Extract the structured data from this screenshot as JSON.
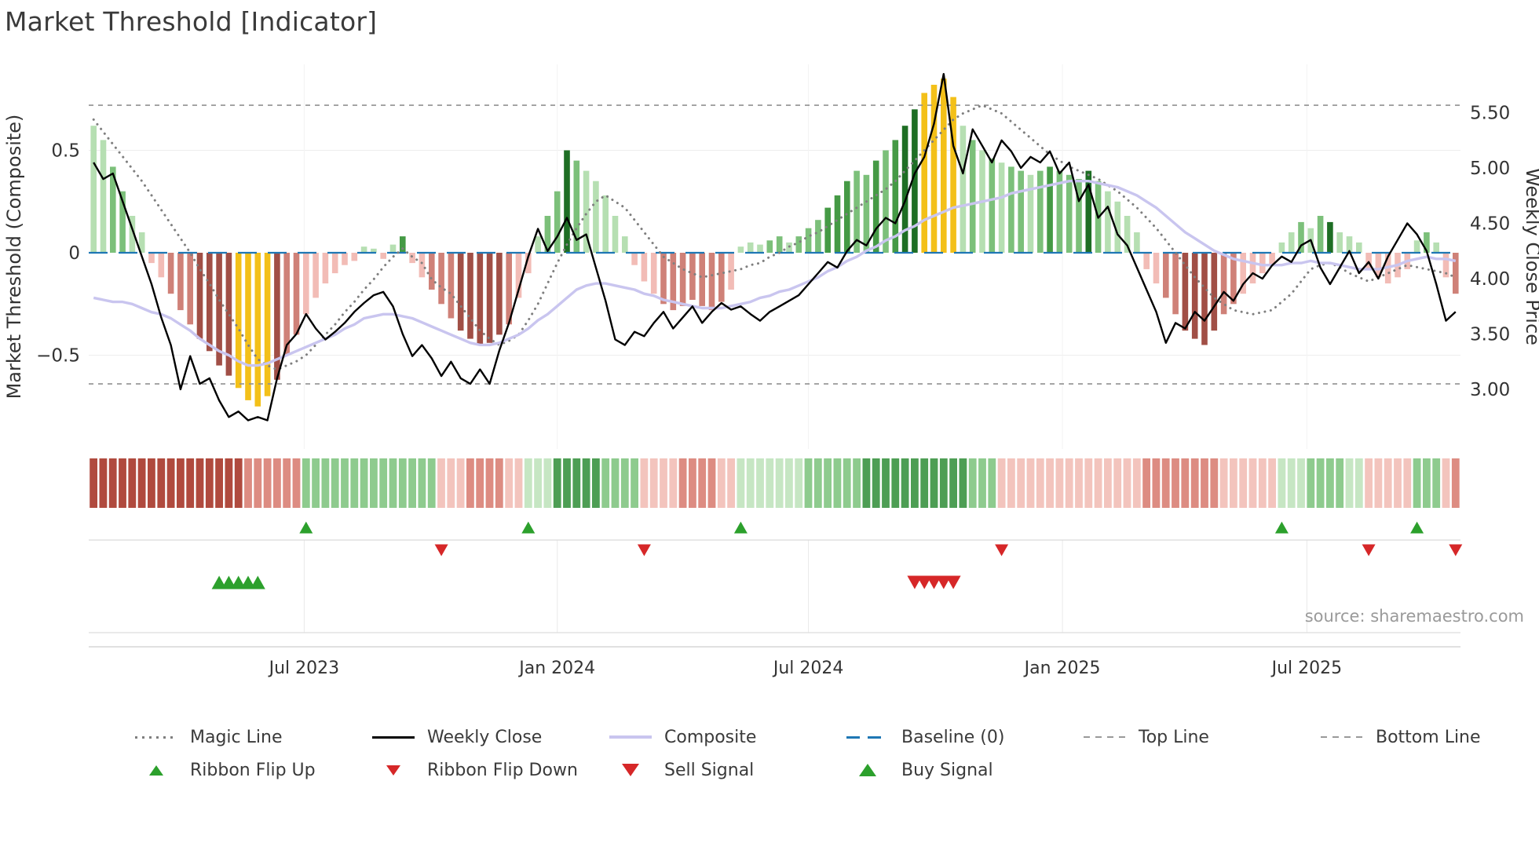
{
  "title": "Market Threshold [Indicator]",
  "source": "source: sharemaestro.com",
  "legend": {
    "row1": [
      {
        "label": "Magic Line",
        "type": "dotted-gray"
      },
      {
        "label": "Weekly Close",
        "type": "solid-black"
      },
      {
        "label": "Composite",
        "type": "solid-lavender"
      },
      {
        "label": "Baseline (0)",
        "type": "dash-blue"
      },
      {
        "label": "Top Line",
        "type": "dash-gray"
      },
      {
        "label": "Bottom Line",
        "type": "dash-gray"
      }
    ],
    "row2": [
      {
        "label": "Ribbon Flip Up",
        "type": "tri-up-green-small"
      },
      {
        "label": "Ribbon Flip Down",
        "type": "tri-down-red-small"
      },
      {
        "label": "Sell Signal",
        "type": "tri-down-red-large"
      },
      {
        "label": "Buy Signal",
        "type": "tri-up-green-large"
      }
    ]
  },
  "chart_data": {
    "type": "combo",
    "title": "Market Threshold [Indicator]",
    "frequency": "weekly",
    "x_ticks": [
      {
        "label": "Jul 2023",
        "week": 21.8
      },
      {
        "label": "Jan 2024",
        "week": 48.0
      },
      {
        "label": "Jul 2024",
        "week": 74.0
      },
      {
        "label": "Jan 2025",
        "week": 100.3
      },
      {
        "label": "Jul 2025",
        "week": 125.6
      }
    ],
    "y_left": {
      "title": "Market Threshold (Composite)",
      "ticks": [
        {
          "label": "0.5",
          "v": 0.5
        },
        {
          "label": "0",
          "v": 0.0
        },
        {
          "label": "−0.5",
          "v": -0.5
        }
      ],
      "range": [
        -0.95,
        0.92
      ]
    },
    "y_right": {
      "title": "Weekly Close Price",
      "ticks": [
        {
          "label": "5.50",
          "v": 5.5
        },
        {
          "label": "5.00",
          "v": 5.0
        },
        {
          "label": "4.50",
          "v": 4.5
        },
        {
          "label": "4.00",
          "v": 4.0
        },
        {
          "label": "3.50",
          "v": 3.5
        },
        {
          "label": "3.00",
          "v": 3.0
        }
      ],
      "range": [
        2.46,
        5.94
      ]
    },
    "baseline": 0,
    "top_line": 0.72,
    "bottom_line": -0.64,
    "colors": {
      "weekly_close": "#000000",
      "composite_line": "#c9c5ef",
      "magic_line": "#7f7f7f",
      "baseline": "#1f77b4",
      "top_bottom_line": "#909090",
      "buy_green": "#2ca02c",
      "sell_red": "#d62728"
    },
    "palette": {
      "g1": "#b6dfb2",
      "g2": "#7cc07a",
      "g3": "#459a45",
      "g4": "#1e6e24",
      "r1": "#f2bcb6",
      "r2": "#cf8178",
      "r3": "#a14f46",
      "y": "#f3c019"
    },
    "ribbon_palette": {
      "R3": "#b04a3e",
      "R2": "#dd8c82",
      "R1": "#f3c4bd",
      "G3": "#4d9e54",
      "G2": "#8ecb8e",
      "G1": "#c6e6c3"
    },
    "series": {
      "bar": [
        0.62,
        0.55,
        0.42,
        0.3,
        0.18,
        0.1,
        -0.05,
        -0.12,
        -0.2,
        -0.28,
        -0.35,
        -0.42,
        -0.48,
        -0.55,
        -0.6,
        -0.66,
        -0.72,
        -0.75,
        -0.7,
        -0.62,
        -0.5,
        -0.4,
        -0.3,
        -0.22,
        -0.15,
        -0.1,
        -0.06,
        -0.04,
        0.03,
        0.02,
        -0.03,
        0.04,
        0.08,
        -0.05,
        -0.12,
        -0.18,
        -0.25,
        -0.32,
        -0.38,
        -0.42,
        -0.45,
        -0.44,
        -0.4,
        -0.35,
        -0.22,
        -0.1,
        0.08,
        0.18,
        0.3,
        0.5,
        0.45,
        0.4,
        0.35,
        0.28,
        0.18,
        0.08,
        -0.06,
        -0.14,
        -0.2,
        -0.25,
        -0.28,
        -0.26,
        -0.23,
        -0.26,
        -0.28,
        -0.24,
        -0.18,
        0.03,
        0.05,
        0.04,
        0.06,
        0.08,
        0.05,
        0.08,
        0.12,
        0.16,
        0.22,
        0.28,
        0.35,
        0.4,
        0.38,
        0.45,
        0.5,
        0.55,
        0.62,
        0.7,
        0.78,
        0.82,
        0.85,
        0.76,
        0.62,
        0.55,
        0.5,
        0.46,
        0.44,
        0.42,
        0.4,
        0.38,
        0.4,
        0.42,
        0.4,
        0.38,
        0.36,
        0.4,
        0.35,
        0.3,
        0.25,
        0.18,
        0.1,
        -0.08,
        -0.15,
        -0.22,
        -0.3,
        -0.38,
        -0.42,
        -0.45,
        -0.38,
        -0.3,
        -0.25,
        -0.2,
        -0.15,
        -0.1,
        -0.06,
        0.05,
        0.1,
        0.15,
        0.12,
        0.18,
        0.15,
        0.1,
        0.08,
        0.05,
        -0.08,
        -0.12,
        -0.15,
        -0.12,
        -0.08,
        0.06,
        0.1,
        0.05,
        -0.12,
        -0.2
      ],
      "bar_color": [
        "g1",
        "g1",
        "g2",
        "g2",
        "g1",
        "g1",
        "r1",
        "r1",
        "r2",
        "r2",
        "r2",
        "r3",
        "r3",
        "r3",
        "r3",
        "y",
        "y",
        "y",
        "y",
        "r3",
        "r2",
        "r2",
        "r1",
        "r1",
        "r1",
        "r1",
        "r1",
        "r1",
        "g1",
        "g1",
        "r1",
        "g1",
        "g3",
        "r1",
        "r1",
        "r2",
        "r2",
        "r2",
        "r3",
        "r3",
        "r3",
        "r3",
        "r3",
        "r2",
        "r1",
        "r1",
        "g1",
        "g2",
        "g2",
        "g4",
        "g2",
        "g1",
        "g1",
        "g1",
        "g1",
        "g1",
        "r1",
        "r1",
        "r1",
        "r2",
        "r2",
        "r2",
        "r2",
        "r2",
        "r2",
        "r2",
        "r1",
        "g1",
        "g1",
        "g1",
        "g2",
        "g2",
        "g1",
        "g2",
        "g2",
        "g2",
        "g3",
        "g3",
        "g3",
        "g2",
        "g2",
        "g3",
        "g2",
        "g3",
        "g4",
        "g4",
        "y",
        "y",
        "y",
        "y",
        "g1",
        "g2",
        "g1",
        "g2",
        "g1",
        "g2",
        "g2",
        "g1",
        "g2",
        "g3",
        "g2",
        "g2",
        "g2",
        "g4",
        "g2",
        "g1",
        "g1",
        "g1",
        "g1",
        "r1",
        "r1",
        "r2",
        "r2",
        "r3",
        "r3",
        "r3",
        "r3",
        "r2",
        "r2",
        "r1",
        "r1",
        "r1",
        "r1",
        "g1",
        "g1",
        "g2",
        "g1",
        "g2",
        "g4",
        "g1",
        "g1",
        "g1",
        "r1",
        "r1",
        "r1",
        "r1",
        "r1",
        "g1",
        "g2",
        "g1",
        "r1",
        "r2"
      ],
      "weekly_close": [
        5.05,
        4.9,
        4.95,
        4.7,
        4.45,
        4.2,
        3.95,
        3.65,
        3.4,
        3.0,
        3.3,
        3.05,
        3.1,
        2.9,
        2.75,
        2.8,
        2.72,
        2.75,
        2.72,
        3.1,
        3.4,
        3.5,
        3.68,
        3.55,
        3.45,
        3.52,
        3.6,
        3.7,
        3.78,
        3.85,
        3.88,
        3.75,
        3.5,
        3.3,
        3.4,
        3.28,
        3.12,
        3.25,
        3.1,
        3.05,
        3.18,
        3.05,
        3.35,
        3.6,
        3.9,
        4.2,
        4.45,
        4.25,
        4.38,
        4.55,
        4.35,
        4.4,
        4.1,
        3.8,
        3.45,
        3.4,
        3.52,
        3.48,
        3.6,
        3.7,
        3.55,
        3.65,
        3.75,
        3.6,
        3.7,
        3.78,
        3.72,
        3.75,
        3.68,
        3.62,
        3.7,
        3.75,
        3.8,
        3.85,
        3.95,
        4.05,
        4.15,
        4.1,
        4.25,
        4.35,
        4.3,
        4.45,
        4.55,
        4.5,
        4.7,
        4.95,
        5.1,
        5.4,
        5.85,
        5.2,
        4.95,
        5.35,
        5.2,
        5.05,
        5.25,
        5.15,
        5.0,
        5.1,
        5.05,
        5.15,
        4.95,
        5.05,
        4.7,
        4.85,
        4.55,
        4.65,
        4.4,
        4.3,
        4.1,
        3.9,
        3.7,
        3.42,
        3.6,
        3.55,
        3.7,
        3.62,
        3.75,
        3.88,
        3.8,
        3.95,
        4.05,
        4.0,
        4.12,
        4.2,
        4.15,
        4.3,
        4.35,
        4.1,
        3.95,
        4.1,
        4.25,
        4.05,
        4.15,
        4.0,
        4.2,
        4.35,
        4.5,
        4.4,
        4.25,
        3.95,
        3.62,
        3.7
      ],
      "composite": [
        -0.22,
        -0.23,
        -0.24,
        -0.24,
        -0.25,
        -0.27,
        -0.29,
        -0.3,
        -0.32,
        -0.35,
        -0.38,
        -0.42,
        -0.45,
        -0.48,
        -0.5,
        -0.53,
        -0.55,
        -0.55,
        -0.54,
        -0.52,
        -0.5,
        -0.48,
        -0.46,
        -0.44,
        -0.42,
        -0.4,
        -0.37,
        -0.35,
        -0.32,
        -0.31,
        -0.3,
        -0.3,
        -0.31,
        -0.32,
        -0.34,
        -0.36,
        -0.38,
        -0.4,
        -0.42,
        -0.44,
        -0.45,
        -0.45,
        -0.44,
        -0.42,
        -0.4,
        -0.37,
        -0.33,
        -0.3,
        -0.26,
        -0.22,
        -0.18,
        -0.16,
        -0.15,
        -0.15,
        -0.16,
        -0.17,
        -0.18,
        -0.2,
        -0.21,
        -0.23,
        -0.24,
        -0.25,
        -0.26,
        -0.27,
        -0.27,
        -0.27,
        -0.26,
        -0.25,
        -0.24,
        -0.22,
        -0.21,
        -0.19,
        -0.18,
        -0.16,
        -0.14,
        -0.12,
        -0.09,
        -0.07,
        -0.04,
        -0.02,
        0.01,
        0.03,
        0.06,
        0.08,
        0.11,
        0.13,
        0.16,
        0.18,
        0.2,
        0.22,
        0.23,
        0.24,
        0.25,
        0.26,
        0.27,
        0.29,
        0.3,
        0.31,
        0.32,
        0.33,
        0.34,
        0.35,
        0.35,
        0.35,
        0.34,
        0.33,
        0.32,
        0.3,
        0.28,
        0.25,
        0.22,
        0.18,
        0.14,
        0.1,
        0.07,
        0.04,
        0.01,
        -0.01,
        -0.03,
        -0.04,
        -0.05,
        -0.06,
        -0.06,
        -0.06,
        -0.05,
        -0.05,
        -0.04,
        -0.05,
        -0.05,
        -0.06,
        -0.07,
        -0.08,
        -0.08,
        -0.08,
        -0.07,
        -0.06,
        -0.04,
        -0.03,
        -0.02,
        -0.03,
        -0.03,
        -0.04
      ],
      "magic": [
        0.65,
        0.59,
        0.53,
        0.47,
        0.41,
        0.35,
        0.28,
        0.21,
        0.14,
        0.07,
        0.0,
        -0.08,
        -0.15,
        -0.23,
        -0.3,
        -0.37,
        -0.45,
        -0.52,
        -0.55,
        -0.57,
        -0.55,
        -0.53,
        -0.5,
        -0.45,
        -0.4,
        -0.35,
        -0.29,
        -0.24,
        -0.18,
        -0.13,
        -0.07,
        -0.02,
        0.02,
        -0.02,
        -0.05,
        -0.13,
        -0.17,
        -0.2,
        -0.26,
        -0.32,
        -0.38,
        -0.42,
        -0.45,
        -0.43,
        -0.4,
        -0.33,
        -0.25,
        -0.15,
        -0.05,
        0.04,
        0.12,
        0.19,
        0.25,
        0.28,
        0.25,
        0.22,
        0.16,
        0.1,
        0.04,
        -0.02,
        -0.05,
        -0.08,
        -0.1,
        -0.12,
        -0.11,
        -0.1,
        -0.09,
        -0.08,
        -0.06,
        -0.05,
        -0.02,
        0.0,
        0.03,
        0.05,
        0.08,
        0.1,
        0.13,
        0.16,
        0.19,
        0.22,
        0.25,
        0.28,
        0.31,
        0.35,
        0.4,
        0.45,
        0.5,
        0.55,
        0.6,
        0.65,
        0.68,
        0.7,
        0.72,
        0.7,
        0.68,
        0.64,
        0.6,
        0.56,
        0.52,
        0.48,
        0.45,
        0.42,
        0.4,
        0.38,
        0.36,
        0.33,
        0.3,
        0.26,
        0.22,
        0.17,
        0.12,
        0.06,
        0.0,
        -0.06,
        -0.12,
        -0.17,
        -0.22,
        -0.25,
        -0.28,
        -0.29,
        -0.3,
        -0.29,
        -0.28,
        -0.24,
        -0.2,
        -0.14,
        -0.08,
        -0.06,
        -0.05,
        -0.07,
        -0.1,
        -0.12,
        -0.14,
        -0.12,
        -0.1,
        -0.08,
        -0.06,
        -0.07,
        -0.08,
        -0.09,
        -0.1,
        -0.12
      ],
      "ribbon": [
        "R3",
        "R3",
        "R3",
        "R3",
        "R3",
        "R3",
        "R3",
        "R3",
        "R3",
        "R3",
        "R3",
        "R3",
        "R3",
        "R3",
        "R3",
        "R3",
        "R2",
        "R2",
        "R2",
        "R2",
        "R2",
        "R2",
        "G2",
        "G2",
        "G2",
        "G2",
        "G2",
        "G2",
        "G2",
        "G2",
        "G2",
        "G2",
        "G2",
        "G2",
        "G2",
        "G2",
        "R1",
        "R1",
        "R1",
        "R2",
        "R2",
        "R2",
        "R2",
        "R1",
        "R1",
        "G1",
        "G1",
        "G1",
        "G3",
        "G3",
        "G3",
        "G3",
        "G3",
        "G2",
        "G2",
        "G2",
        "G2",
        "R1",
        "R1",
        "R1",
        "R1",
        "R2",
        "R2",
        "R2",
        "R2",
        "R1",
        "R1",
        "G1",
        "G1",
        "G1",
        "G1",
        "G1",
        "G1",
        "G1",
        "G2",
        "G2",
        "G2",
        "G2",
        "G2",
        "G2",
        "G3",
        "G3",
        "G3",
        "G3",
        "G3",
        "G3",
        "G3",
        "G3",
        "G3",
        "G3",
        "G3",
        "G2",
        "G2",
        "G2",
        "R1",
        "R1",
        "R1",
        "R1",
        "R1",
        "R1",
        "R1",
        "R1",
        "R1",
        "R1",
        "R1",
        "R1",
        "R1",
        "R1",
        "R1",
        "R2",
        "R2",
        "R2",
        "R2",
        "R2",
        "R2",
        "R2",
        "R2",
        "R1",
        "R1",
        "R1",
        "R1",
        "R1",
        "R1",
        "G1",
        "G1",
        "G1",
        "G2",
        "G2",
        "G2",
        "G2",
        "G1",
        "G1",
        "R1",
        "R1",
        "R1",
        "R1",
        "R1",
        "G2",
        "G2",
        "G2",
        "R1",
        "R2"
      ]
    },
    "signals": {
      "ribbon_flip_up": [
        22,
        45,
        67,
        123,
        137
      ],
      "ribbon_flip_down": [
        36,
        57,
        94,
        132,
        141
      ],
      "buy": [
        13,
        14,
        15,
        16,
        17
      ],
      "sell": [
        85,
        86,
        87,
        88,
        89
      ]
    }
  }
}
